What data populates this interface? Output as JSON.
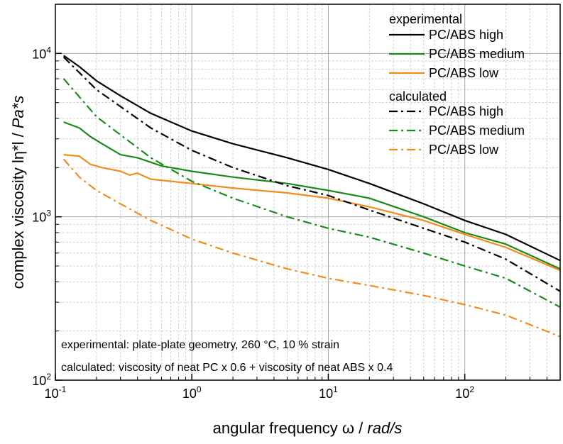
{
  "chart_data": {
    "type": "line",
    "xscale": "log",
    "yscale": "log",
    "xlim": [
      0.1,
      500
    ],
    "ylim": [
      100,
      20000
    ],
    "x_ticks": [
      {
        "base": "10",
        "exp": "-1",
        "value": 0.1
      },
      {
        "base": "10",
        "exp": "0",
        "value": 1
      },
      {
        "base": "10",
        "exp": "1",
        "value": 10
      },
      {
        "base": "10",
        "exp": "2",
        "value": 100
      }
    ],
    "y_ticks": [
      {
        "base": "10",
        "exp": "2",
        "value": 100
      },
      {
        "base": "10",
        "exp": "3",
        "value": 1000
      },
      {
        "base": "10",
        "exp": "4",
        "value": 10000
      }
    ],
    "xlabel": {
      "main": "angular frequency ω / ",
      "unit": "rad/s"
    },
    "ylabel": {
      "main": "complex viscosity lη*l / ",
      "unit": "Pa*s"
    },
    "grid": true,
    "legend_position": "top-right",
    "legend_groups": [
      "experimental",
      "calculated"
    ],
    "annotations": [
      "experimental: plate-plate geometry, 260 °C, 10 % strain",
      "calculated: viscosity of neat PC x 0.6 + viscosity of neat ABS x 0.4"
    ],
    "series": [
      {
        "name": "PC/ABS high",
        "group": "experimental",
        "color": "#000000",
        "dash": "solid",
        "x": [
          0.115,
          0.15,
          0.2,
          0.3,
          0.5,
          1,
          2,
          5,
          10,
          20,
          50,
          100,
          200,
          500
        ],
        "y": [
          9700,
          8300,
          6800,
          5500,
          4300,
          3350,
          2800,
          2300,
          1950,
          1600,
          1200,
          950,
          780,
          540
        ]
      },
      {
        "name": "PC/ABS medium",
        "group": "experimental",
        "color": "#1a8a1a",
        "dash": "solid",
        "x": [
          0.115,
          0.15,
          0.18,
          0.22,
          0.3,
          0.4,
          0.6,
          1,
          2,
          5,
          10,
          20,
          50,
          100,
          200,
          500
        ],
        "y": [
          3800,
          3500,
          3100,
          2800,
          2400,
          2300,
          2050,
          1900,
          1750,
          1600,
          1450,
          1300,
          1000,
          800,
          680,
          480
        ]
      },
      {
        "name": "PC/ABS low",
        "group": "experimental",
        "color": "#f28c1e",
        "dash": "solid",
        "x": [
          0.115,
          0.15,
          0.18,
          0.22,
          0.3,
          0.35,
          0.4,
          0.5,
          1,
          2,
          5,
          10,
          20,
          50,
          100,
          200,
          500
        ],
        "y": [
          2400,
          2350,
          2100,
          2000,
          1900,
          1800,
          1850,
          1700,
          1600,
          1500,
          1400,
          1300,
          1150,
          950,
          780,
          650,
          470
        ]
      },
      {
        "name": "PC/ABS high",
        "group": "calculated",
        "color": "#000000",
        "dash": "dashdot",
        "x": [
          0.115,
          0.2,
          0.5,
          1,
          2,
          5,
          10,
          20,
          50,
          100,
          200,
          500
        ],
        "y": [
          9500,
          6000,
          3500,
          2550,
          2000,
          1550,
          1350,
          1100,
          850,
          700,
          550,
          350
        ]
      },
      {
        "name": "PC/ABS medium",
        "group": "calculated",
        "color": "#1a8a1a",
        "dash": "dashdot",
        "x": [
          0.115,
          0.2,
          0.5,
          1,
          2,
          5,
          10,
          20,
          50,
          100,
          200,
          500
        ],
        "y": [
          7000,
          4100,
          2300,
          1650,
          1300,
          1000,
          850,
          750,
          600,
          500,
          420,
          280
        ]
      },
      {
        "name": "PC/ABS low",
        "group": "calculated",
        "color": "#f28c1e",
        "dash": "dashdot",
        "x": [
          0.115,
          0.15,
          0.2,
          0.3,
          0.5,
          1,
          2,
          5,
          10,
          20,
          50,
          100,
          200,
          500
        ],
        "y": [
          2250,
          1750,
          1450,
          1200,
          950,
          730,
          600,
          480,
          420,
          380,
          330,
          290,
          250,
          185
        ]
      }
    ]
  }
}
